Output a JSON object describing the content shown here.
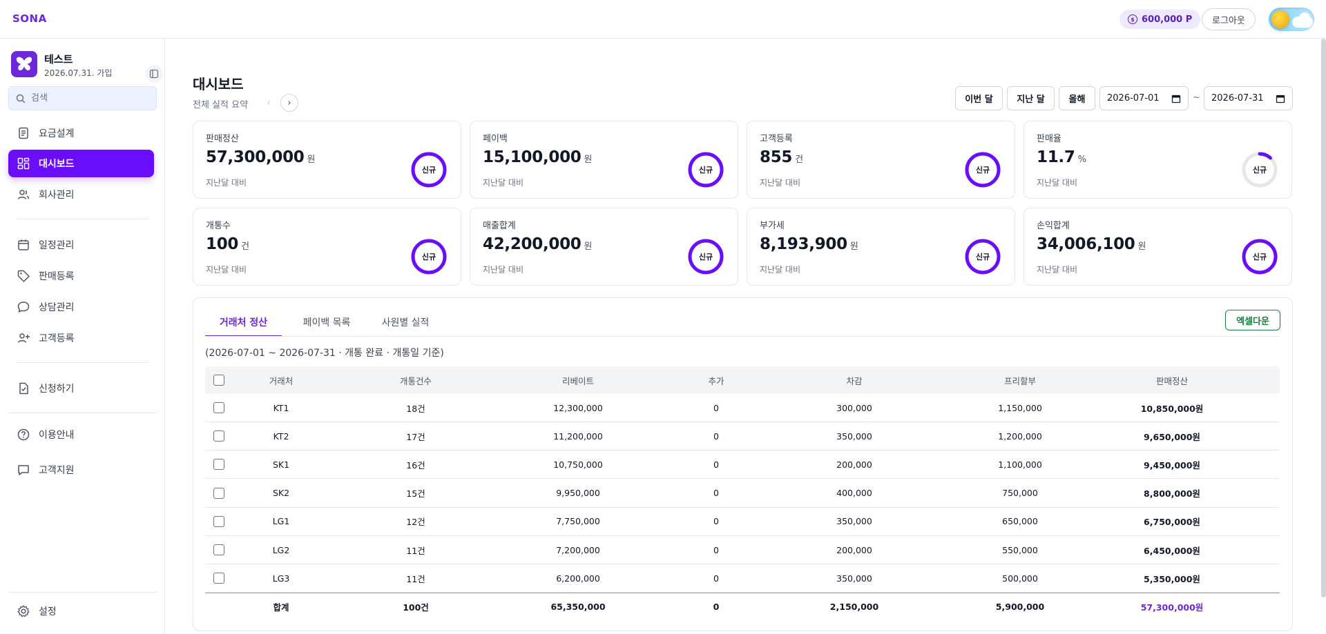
{
  "topbar": {
    "brand": "SONA",
    "points": "600,000 P",
    "logout_label": "로그아웃"
  },
  "sidebar": {
    "profile_name": "테스트",
    "profile_joined": "2026.07.31. 가입",
    "search_placeholder": "검색",
    "items": [
      {
        "label": "요금설계",
        "icon": "document-icon"
      },
      {
        "label": "대시보드",
        "icon": "dashboard-icon",
        "active": true
      },
      {
        "label": "회사관리",
        "icon": "users-icon"
      },
      {
        "label": "일정관리",
        "icon": "calendar-icon"
      },
      {
        "label": "판매등록",
        "icon": "tag-icon"
      },
      {
        "label": "상담관리",
        "icon": "chat-icon"
      },
      {
        "label": "고객등록",
        "icon": "user-plus-icon"
      },
      {
        "label": "신청하기",
        "icon": "file-check-icon"
      },
      {
        "label": "이용안내",
        "icon": "help-icon"
      },
      {
        "label": "고객지원",
        "icon": "message-icon"
      }
    ],
    "settings_label": "설정"
  },
  "header": {
    "title": "대시보드",
    "subtitle": "전체 실적 요약",
    "range_buttons": [
      "이번 달",
      "지난 달",
      "올해"
    ],
    "date_from": "2026-07-01",
    "date_to": "2026-07-31",
    "tilde": "~"
  },
  "cards": [
    {
      "label": "판매정산",
      "value": "57,300,000",
      "unit": "원",
      "compare": "지난달 대비",
      "badge": "신규",
      "progress": 1.0
    },
    {
      "label": "페이백",
      "value": "15,100,000",
      "unit": "원",
      "compare": "지난달 대비",
      "badge": "신규",
      "progress": 1.0
    },
    {
      "label": "고객등록",
      "value": "855",
      "unit": "건",
      "compare": "지난달 대비",
      "badge": "신규",
      "progress": 1.0
    },
    {
      "label": "판매율",
      "value": "11.7",
      "unit": "%",
      "compare": "지난달 대비",
      "badge": "신규",
      "progress": 0.117
    },
    {
      "label": "개통수",
      "value": "100",
      "unit": "건",
      "compare": "지난달 대비",
      "badge": "신규",
      "progress": 1.0
    },
    {
      "label": "매출합계",
      "value": "42,200,000",
      "unit": "원",
      "compare": "지난달 대비",
      "badge": "신규",
      "progress": 1.0
    },
    {
      "label": "부가세",
      "value": "8,193,900",
      "unit": "원",
      "compare": "지난달 대비",
      "badge": "신규",
      "progress": 1.0
    },
    {
      "label": "손익합계",
      "value": "34,006,100",
      "unit": "원",
      "compare": "지난달 대비",
      "badge": "신규",
      "progress": 1.0
    }
  ],
  "panel": {
    "tabs": [
      "거래처 정산",
      "페이백 목록",
      "사원별 실적"
    ],
    "excel_label": "엑셀다운",
    "period": "(2026-07-01 ~ 2026-07-31 · 개통 완료 · 개통일 기준)",
    "columns": [
      "거래처",
      "개통건수",
      "리베이트",
      "추가",
      "차감",
      "프리할부",
      "판매정산"
    ],
    "rows": [
      [
        "KT1",
        "18건",
        "12,300,000",
        "0",
        "300,000",
        "1,150,000",
        "10,850,000원"
      ],
      [
        "KT2",
        "17건",
        "11,200,000",
        "0",
        "350,000",
        "1,200,000",
        "9,650,000원"
      ],
      [
        "SK1",
        "16건",
        "10,750,000",
        "0",
        "200,000",
        "1,100,000",
        "9,450,000원"
      ],
      [
        "SK2",
        "15건",
        "9,950,000",
        "0",
        "400,000",
        "750,000",
        "8,800,000원"
      ],
      [
        "LG1",
        "12건",
        "7,750,000",
        "0",
        "350,000",
        "650,000",
        "6,750,000원"
      ],
      [
        "LG2",
        "11건",
        "7,200,000",
        "0",
        "200,000",
        "550,000",
        "6,450,000원"
      ],
      [
        "LG3",
        "11건",
        "6,200,000",
        "0",
        "350,000",
        "500,000",
        "5,350,000원"
      ]
    ],
    "total": [
      "합계",
      "100건",
      "65,350,000",
      "0",
      "2,150,000",
      "5,900,000",
      "57,300,000원"
    ]
  },
  "colors": {
    "accent": "#6a0dfa",
    "ring_track": "#e5e7eb",
    "excel": "#15803d"
  }
}
